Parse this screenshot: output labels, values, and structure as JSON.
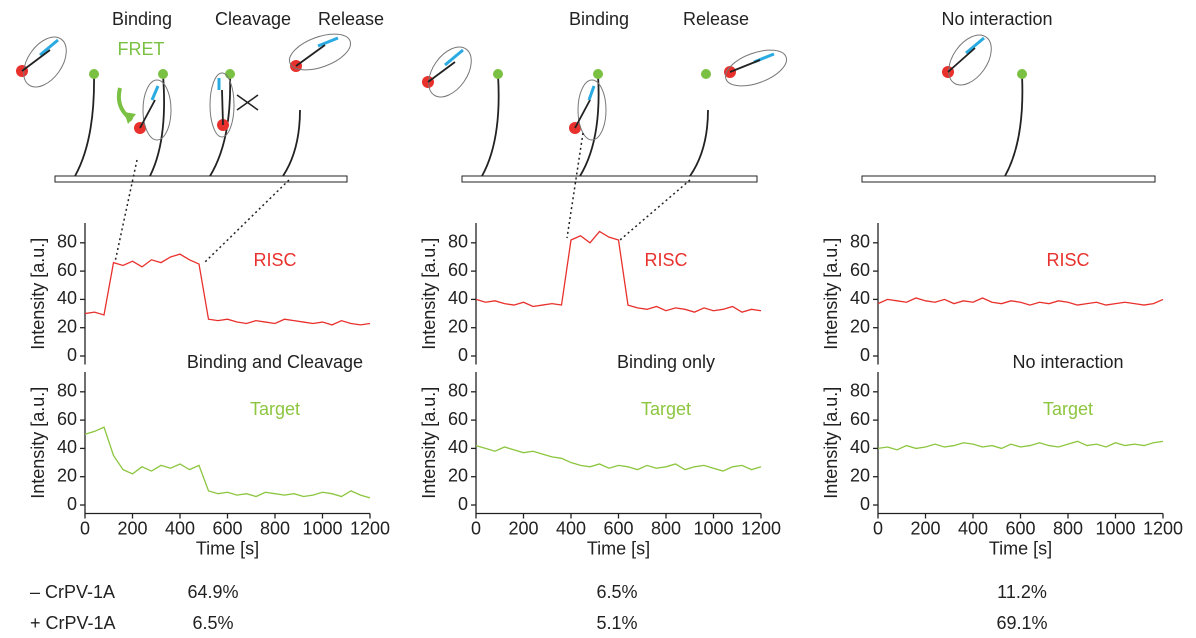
{
  "schematic": {
    "labels": [
      "Binding",
      "Cleavage",
      "Release",
      "FRET",
      "Binding",
      "Release",
      "No interaction"
    ]
  },
  "chart_data": [
    {
      "type": "line",
      "ylabel": "Intensity [a.u.]",
      "xlim": [
        0,
        1200
      ],
      "ylim": [
        -6,
        94
      ],
      "yticks": [
        0,
        20,
        40,
        60,
        80
      ],
      "x": [
        0,
        40,
        80,
        120,
        160,
        200,
        240,
        280,
        320,
        360,
        400,
        440,
        480,
        520,
        560,
        600,
        640,
        680,
        720,
        760,
        800,
        840,
        880,
        920,
        960,
        1000,
        1040,
        1080,
        1120,
        1160,
        1200
      ],
      "series": [
        {
          "name": "RISC",
          "color": "#e8312d",
          "values": [
            30,
            31,
            29,
            66,
            64,
            67,
            63,
            68,
            66,
            70,
            72,
            68,
            65,
            26,
            25,
            26,
            24,
            23,
            25,
            24,
            23,
            26,
            25,
            24,
            23,
            24,
            22,
            25,
            23,
            22,
            23
          ]
        }
      ]
    },
    {
      "type": "line",
      "title": "Binding and Cleavage",
      "ylabel": "Intensity [a.u.]",
      "xlabel": "Time [s]",
      "xlim": [
        0,
        1200
      ],
      "xticks": [
        0,
        200,
        400,
        600,
        800,
        1000,
        1200
      ],
      "ylim": [
        -6,
        94
      ],
      "yticks": [
        0,
        20,
        40,
        60,
        80
      ],
      "x": [
        0,
        40,
        80,
        120,
        160,
        200,
        240,
        280,
        320,
        360,
        400,
        440,
        480,
        520,
        560,
        600,
        640,
        680,
        720,
        760,
        800,
        840,
        880,
        920,
        960,
        1000,
        1040,
        1080,
        1120,
        1160,
        1200
      ],
      "series": [
        {
          "name": "Target",
          "color": "#8cc63f",
          "values": [
            50,
            52,
            55,
            35,
            25,
            22,
            27,
            24,
            28,
            26,
            29,
            25,
            28,
            10,
            8,
            9,
            7,
            8,
            6,
            9,
            8,
            7,
            8,
            6,
            7,
            9,
            8,
            6,
            10,
            7,
            5
          ]
        }
      ]
    },
    {
      "type": "line",
      "ylabel": "Intensity [a.u.]",
      "xlim": [
        0,
        1200
      ],
      "ylim": [
        -6,
        94
      ],
      "yticks": [
        0,
        20,
        40,
        60,
        80
      ],
      "x": [
        0,
        40,
        80,
        120,
        160,
        200,
        240,
        280,
        320,
        360,
        400,
        440,
        480,
        520,
        560,
        600,
        640,
        680,
        720,
        760,
        800,
        840,
        880,
        920,
        960,
        1000,
        1040,
        1080,
        1120,
        1160,
        1200
      ],
      "series": [
        {
          "name": "RISC",
          "color": "#e8312d",
          "values": [
            40,
            38,
            39,
            37,
            36,
            38,
            35,
            36,
            37,
            36,
            82,
            85,
            80,
            88,
            84,
            82,
            36,
            34,
            33,
            35,
            32,
            34,
            33,
            31,
            34,
            32,
            33,
            35,
            31,
            33,
            32
          ]
        }
      ]
    },
    {
      "type": "line",
      "title": "Binding only",
      "ylabel": "Intensity [a.u.]",
      "xlabel": "Time [s]",
      "xlim": [
        0,
        1200
      ],
      "xticks": [
        0,
        200,
        400,
        600,
        800,
        1000,
        1200
      ],
      "ylim": [
        -6,
        94
      ],
      "yticks": [
        0,
        20,
        40,
        60,
        80
      ],
      "x": [
        0,
        40,
        80,
        120,
        160,
        200,
        240,
        280,
        320,
        360,
        400,
        440,
        480,
        520,
        560,
        600,
        640,
        680,
        720,
        760,
        800,
        840,
        880,
        920,
        960,
        1000,
        1040,
        1080,
        1120,
        1160,
        1200
      ],
      "series": [
        {
          "name": "Target",
          "color": "#8cc63f",
          "values": [
            42,
            40,
            38,
            41,
            39,
            37,
            38,
            36,
            34,
            33,
            30,
            28,
            27,
            29,
            26,
            28,
            27,
            25,
            28,
            26,
            27,
            29,
            25,
            27,
            28,
            26,
            24,
            27,
            28,
            25,
            27
          ]
        }
      ]
    },
    {
      "type": "line",
      "ylabel": "Intensity [a.u.]",
      "xlim": [
        0,
        1200
      ],
      "ylim": [
        -6,
        94
      ],
      "yticks": [
        0,
        20,
        40,
        60,
        80
      ],
      "x": [
        0,
        40,
        80,
        120,
        160,
        200,
        240,
        280,
        320,
        360,
        400,
        440,
        480,
        520,
        560,
        600,
        640,
        680,
        720,
        760,
        800,
        840,
        880,
        920,
        960,
        1000,
        1040,
        1080,
        1120,
        1160,
        1200
      ],
      "series": [
        {
          "name": "RISC",
          "color": "#e8312d",
          "values": [
            37,
            40,
            39,
            38,
            41,
            39,
            38,
            40,
            37,
            39,
            38,
            41,
            38,
            37,
            39,
            38,
            36,
            38,
            37,
            39,
            38,
            36,
            37,
            38,
            36,
            37,
            38,
            37,
            36,
            37,
            40
          ]
        }
      ]
    },
    {
      "type": "line",
      "title": "No interaction",
      "ylabel": "Intensity [a.u.]",
      "xlabel": "Time [s]",
      "xlim": [
        0,
        1200
      ],
      "xticks": [
        0,
        200,
        400,
        600,
        800,
        1000,
        1200
      ],
      "ylim": [
        -6,
        94
      ],
      "yticks": [
        0,
        20,
        40,
        60,
        80
      ],
      "x": [
        0,
        40,
        80,
        120,
        160,
        200,
        240,
        280,
        320,
        360,
        400,
        440,
        480,
        520,
        560,
        600,
        640,
        680,
        720,
        760,
        800,
        840,
        880,
        920,
        960,
        1000,
        1040,
        1080,
        1120,
        1160,
        1200
      ],
      "series": [
        {
          "name": "Target",
          "color": "#8cc63f",
          "values": [
            40,
            41,
            39,
            42,
            40,
            41,
            43,
            41,
            42,
            44,
            43,
            41,
            42,
            40,
            43,
            41,
            42,
            44,
            42,
            41,
            43,
            45,
            42,
            43,
            41,
            44,
            42,
            43,
            42,
            44,
            45
          ]
        }
      ]
    }
  ],
  "table": {
    "rows": [
      [
        "– CrPV-1A",
        "64.9%",
        "6.5%",
        "11.2%"
      ],
      [
        "+ CrPV-1A",
        "6.5%",
        "5.1%",
        "69.1%"
      ]
    ]
  }
}
